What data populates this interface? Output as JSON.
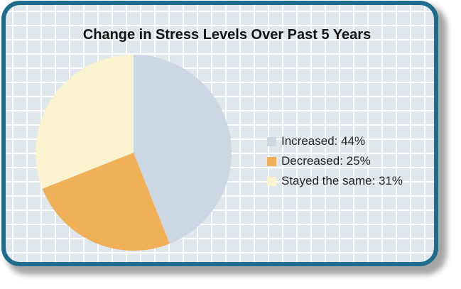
{
  "colors": {
    "frame_border": "#1f6c8d",
    "grid_background": "#dfe7ec",
    "grid_line": "#ffffff"
  },
  "chart_data": {
    "type": "pie",
    "title": "Change in Stress Levels Over Past 5 Years",
    "slices": [
      {
        "label": "Increased",
        "value": 44,
        "color": "#ccd7e3",
        "legend_text": "Increased: 44%"
      },
      {
        "label": "Decreased",
        "value": 25,
        "color": "#efb058",
        "legend_text": "Decreased: 25%"
      },
      {
        "label": "Stayed the same",
        "value": 31,
        "color": "#faf3cf",
        "legend_text": "Stayed the same: 31%"
      }
    ],
    "unit": "%",
    "legend_position": "right",
    "start_angle": "12 o'clock",
    "direction": "clockwise"
  }
}
